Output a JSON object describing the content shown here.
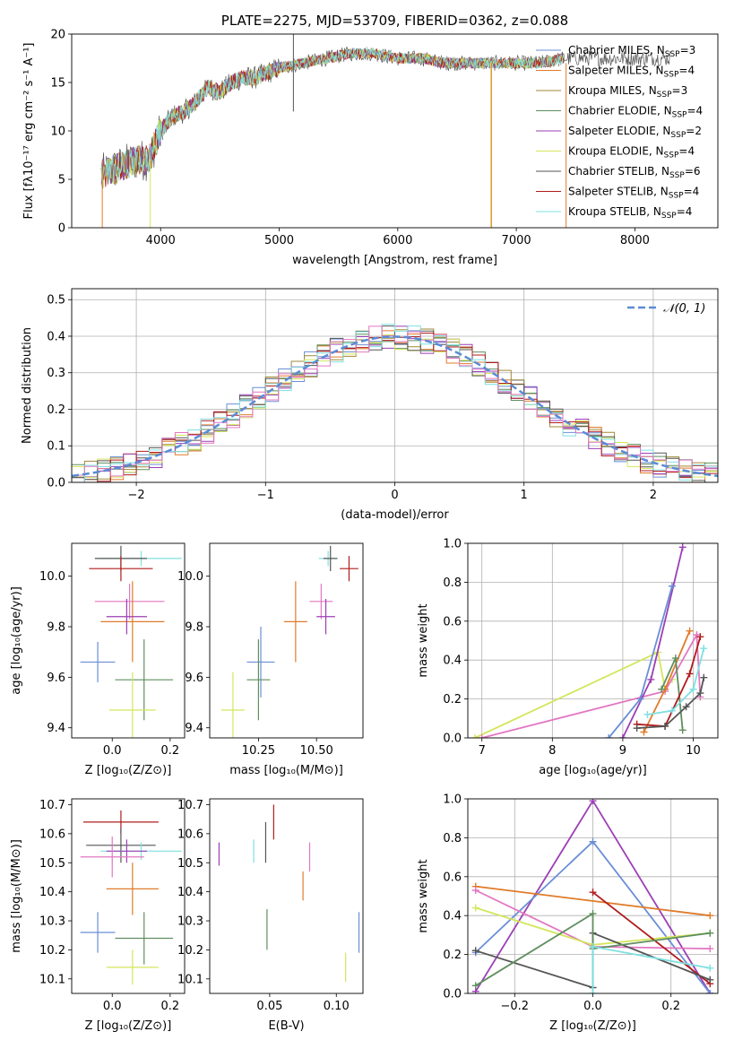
{
  "chart_data": [
    {
      "type": "line",
      "title": "PLATE=2275, MJD=53709, FIBERID=0362, z=0.088",
      "xlabel": "wavelength [Angstrom, rest frame]",
      "ylabel": "Flux [fλ10⁻¹⁷ erg cm⁻² s⁻¹ A⁻¹]",
      "xlim": [
        3250,
        8700
      ],
      "ylim": [
        0,
        20
      ],
      "xticks": [
        4000,
        5000,
        6000,
        7000,
        8000
      ],
      "yticks": [
        0,
        5,
        10,
        15,
        20
      ],
      "legend_position": "top-right",
      "data_x": [
        3500,
        3600,
        3700,
        3800,
        3900,
        4000,
        4100,
        4200,
        4300,
        4400,
        4500,
        4600,
        4700,
        4800,
        4900,
        5000,
        5200,
        5400,
        5600,
        5800,
        6000,
        6200,
        6400,
        6600,
        6800,
        7000,
        7200,
        7400
      ],
      "data_y": [
        5.5,
        6.0,
        6.5,
        7.0,
        7.0,
        10.0,
        11.5,
        12.0,
        13.0,
        14.5,
        14.0,
        15.0,
        15.5,
        15.5,
        16.0,
        16.5,
        17.0,
        17.5,
        18.0,
        18.0,
        17.5,
        17.5,
        17.0,
        17.0,
        17.0,
        17.0,
        17.0,
        17.5
      ],
      "series": [
        {
          "name": "Chabrier MILES",
          "nssp": "3",
          "color": "#6a8ed6"
        },
        {
          "name": "Salpeter MILES",
          "nssp": "4",
          "color": "#e07b2a"
        },
        {
          "name": "Kroupa MILES",
          "nssp": "3",
          "color": "#a08a38"
        },
        {
          "name": "Chabrier ELODIE",
          "nssp": "4",
          "color": "#5f8f5f"
        },
        {
          "name": "Salpeter ELODIE",
          "nssp": "2",
          "color": "#9b3fb5"
        },
        {
          "name": "Kroupa ELODIE",
          "nssp": "4",
          "color": "#d4e65c"
        },
        {
          "name": "Chabrier STELIB",
          "nssp": "6",
          "color": "#555555"
        },
        {
          "name": "Salpeter STELIB",
          "nssp": "4",
          "color": "#b01c1c"
        },
        {
          "name": "Kroupa STELIB",
          "nssp": "4",
          "color": "#7fe0e0"
        }
      ],
      "legend_suffix": "N",
      "legend_sub": "SSP",
      "legend_eq": "="
    },
    {
      "type": "line",
      "xlabel": "(data-model)/error",
      "ylabel": "Normed distribution",
      "xlim": [
        -2.5,
        2.5
      ],
      "ylim": [
        0,
        0.53
      ],
      "xticks": [
        -2,
        -1,
        0,
        1,
        2
      ],
      "xtick_labels": [
        "−2",
        "−1",
        "0",
        "1",
        "2"
      ],
      "yticks": [
        0,
        0.1,
        0.2,
        0.3,
        0.4,
        0.5
      ],
      "ytick_labels": [
        "0.0",
        "0.1",
        "0.2",
        "0.3",
        "0.4",
        "0.5"
      ],
      "legend_entry": "𝒩(0, 1)",
      "legend_position": "top-right",
      "grid": true
    },
    {
      "type": "scatter",
      "xlabel": "Z [log₁₀(Z/Z⊙)]",
      "ylabel": "age  [log₁₀(age/yr)]",
      "xlim": [
        -0.14,
        0.25
      ],
      "ylim": [
        9.36,
        10.13
      ],
      "xticks": [
        0.0,
        0.2
      ],
      "xtick_labels": [
        "0.0",
        "0.2"
      ],
      "yticks": [
        9.4,
        9.6,
        9.8,
        10.0
      ],
      "ytick_labels": [
        "9.4",
        "9.6",
        "9.8",
        "10.0"
      ],
      "points": [
        {
          "x": 0.1,
          "y": 10.07,
          "xerr": 0.14,
          "yerr": 0.03,
          "color": "#7fe0e0"
        },
        {
          "x": 0.03,
          "y": 10.07,
          "xerr": 0.09,
          "yerr": 0.05,
          "color": "#555555"
        },
        {
          "x": 0.03,
          "y": 10.03,
          "xerr": 0.11,
          "yerr": 0.05,
          "color": "#b01c1c"
        },
        {
          "x": 0.06,
          "y": 9.9,
          "xerr": 0.12,
          "yerr": 0.07,
          "color": "#e377c2"
        },
        {
          "x": 0.07,
          "y": 9.82,
          "xerr": 0.11,
          "yerr": 0.16,
          "color": "#e07b2a"
        },
        {
          "x": 0.05,
          "y": 9.84,
          "xerr": 0.07,
          "yerr": 0.07,
          "color": "#9b3fb5"
        },
        {
          "x": -0.05,
          "y": 9.66,
          "xerr": 0.06,
          "yerr": 0.08,
          "color": "#6a8ed6"
        },
        {
          "x": 0.11,
          "y": 9.59,
          "xerr": 0.1,
          "yerr": 0.16,
          "color": "#5f8f5f"
        },
        {
          "x": 0.07,
          "y": 9.47,
          "xerr": 0.08,
          "yerr": 0.15,
          "color": "#d4e65c"
        }
      ]
    },
    {
      "type": "scatter",
      "xlabel": "mass [log₁₀(M/M⊙)]",
      "xlim": [
        10.04,
        10.7
      ],
      "ylim": [
        9.36,
        10.13
      ],
      "xticks": [
        10.25,
        10.5
      ],
      "xtick_labels": [
        "10.25",
        "10.50"
      ],
      "yticks": [
        9.4,
        9.6,
        9.8,
        10.0
      ],
      "ytick_labels": [
        "9.4",
        "9.6",
        "9.8",
        "10.0"
      ],
      "points": [
        {
          "x": 10.55,
          "y": 10.07,
          "xerr": 0.04,
          "yerr": 0.03,
          "color": "#7fe0e0"
        },
        {
          "x": 10.56,
          "y": 10.07,
          "xerr": 0.03,
          "yerr": 0.05,
          "color": "#555555"
        },
        {
          "x": 10.64,
          "y": 10.03,
          "xerr": 0.04,
          "yerr": 0.05,
          "color": "#b01c1c"
        },
        {
          "x": 10.52,
          "y": 9.9,
          "xerr": 0.05,
          "yerr": 0.07,
          "color": "#e377c2"
        },
        {
          "x": 10.41,
          "y": 9.82,
          "xerr": 0.05,
          "yerr": 0.16,
          "color": "#e07b2a"
        },
        {
          "x": 10.54,
          "y": 9.84,
          "xerr": 0.04,
          "yerr": 0.07,
          "color": "#9b3fb5"
        },
        {
          "x": 10.26,
          "y": 9.66,
          "xerr": 0.06,
          "yerr": 0.14,
          "color": "#6a8ed6"
        },
        {
          "x": 10.25,
          "y": 9.59,
          "xerr": 0.05,
          "yerr": 0.16,
          "color": "#5f8f5f"
        },
        {
          "x": 10.14,
          "y": 9.47,
          "xerr": 0.05,
          "yerr": 0.15,
          "color": "#d4e65c"
        }
      ]
    },
    {
      "type": "line",
      "xlabel": "age  [log₁₀(age/yr)]",
      "ylabel": "mass weight",
      "xlim": [
        6.8,
        10.35
      ],
      "ylim": [
        0,
        1
      ],
      "xticks": [
        7,
        8,
        9,
        10
      ],
      "xtick_labels": [
        "7",
        "8",
        "9",
        "10"
      ],
      "yticks": [
        0,
        0.2,
        0.4,
        0.6,
        0.8,
        1.0
      ],
      "ytick_labels": [
        "0.0",
        "0.2",
        "0.4",
        "0.6",
        "0.8",
        "1.0"
      ],
      "grid": true,
      "series": [
        {
          "color": "#d4e65c",
          "points": [
            [
              6.9,
              0.0
            ],
            [
              9.5,
              0.44
            ],
            [
              9.6,
              0.25
            ],
            [
              9.7,
              0.3
            ]
          ]
        },
        {
          "color": "#e377c2",
          "points": [
            [
              7.0,
              0.0
            ],
            [
              9.6,
              0.24
            ],
            [
              10.05,
              0.53
            ],
            [
              10.1,
              0.21
            ]
          ]
        },
        {
          "color": "#9b3fb5",
          "points": [
            [
              9.0,
              0.0
            ],
            [
              9.4,
              0.3
            ],
            [
              9.85,
              0.98
            ]
          ]
        },
        {
          "color": "#6a8ed6",
          "points": [
            [
              8.8,
              0.0
            ],
            [
              9.25,
              0.2
            ],
            [
              9.7,
              0.78
            ]
          ]
        },
        {
          "color": "#e07b2a",
          "points": [
            [
              9.3,
              0.03
            ],
            [
              9.6,
              0.25
            ],
            [
              9.95,
              0.55
            ]
          ]
        },
        {
          "color": "#5f8f5f",
          "points": [
            [
              9.55,
              0.25
            ],
            [
              9.75,
              0.41
            ],
            [
              9.85,
              0.04
            ]
          ]
        },
        {
          "color": "#b01c1c",
          "points": [
            [
              9.2,
              0.07
            ],
            [
              9.6,
              0.06
            ],
            [
              9.95,
              0.33
            ],
            [
              10.1,
              0.52
            ]
          ]
        },
        {
          "color": "#555555",
          "points": [
            [
              9.2,
              0.05
            ],
            [
              9.6,
              0.06
            ],
            [
              9.9,
              0.16
            ],
            [
              10.1,
              0.23
            ],
            [
              10.15,
              0.31
            ]
          ]
        },
        {
          "color": "#7fe0e0",
          "points": [
            [
              9.35,
              0.12
            ],
            [
              9.7,
              0.14
            ],
            [
              10.0,
              0.25
            ],
            [
              10.15,
              0.46
            ]
          ]
        }
      ]
    },
    {
      "type": "scatter",
      "xlabel": "Z [log₁₀(Z/Z⊙)]",
      "ylabel": "mass [log₁₀(M/M⊙)]",
      "xlim": [
        -0.14,
        0.25
      ],
      "ylim": [
        10.05,
        10.72
      ],
      "xticks": [
        0.0,
        0.2
      ],
      "xtick_labels": [
        "0.0",
        "0.2"
      ],
      "yticks": [
        10.1,
        10.2,
        10.3,
        10.4,
        10.5,
        10.6,
        10.7
      ],
      "ytick_labels": [
        "10.1",
        "10.2",
        "10.3",
        "10.4",
        "10.5",
        "10.6",
        "10.7"
      ],
      "points": [
        {
          "x": 0.03,
          "y": 10.64,
          "xerr": 0.13,
          "yerr": 0.04,
          "color": "#b01c1c"
        },
        {
          "x": 0.03,
          "y": 10.56,
          "xerr": 0.12,
          "yerr": 0.06,
          "color": "#555555"
        },
        {
          "x": 0.1,
          "y": 10.54,
          "xerr": 0.14,
          "yerr": 0.03,
          "color": "#7fe0e0"
        },
        {
          "x": 0.05,
          "y": 10.54,
          "xerr": 0.07,
          "yerr": 0.04,
          "color": "#9b3fb5"
        },
        {
          "x": 0.0,
          "y": 10.52,
          "xerr": 0.11,
          "yerr": 0.07,
          "color": "#e377c2"
        },
        {
          "x": 0.07,
          "y": 10.41,
          "xerr": 0.09,
          "yerr": 0.09,
          "color": "#e07b2a"
        },
        {
          "x": -0.05,
          "y": 10.26,
          "xerr": 0.06,
          "yerr": 0.07,
          "color": "#6a8ed6"
        },
        {
          "x": 0.11,
          "y": 10.24,
          "xerr": 0.1,
          "yerr": 0.09,
          "color": "#5f8f5f"
        },
        {
          "x": 0.07,
          "y": 10.14,
          "xerr": 0.09,
          "yerr": 0.06,
          "color": "#d4e65c"
        }
      ]
    },
    {
      "type": "scatter",
      "xlabel": "E(B-V)",
      "xlim": [
        0.005,
        0.12
      ],
      "ylim": [
        10.05,
        10.72
      ],
      "xticks": [
        0.05,
        0.1
      ],
      "xtick_labels": [
        "0.05",
        "0.10"
      ],
      "yticks": [
        10.1,
        10.2,
        10.3,
        10.4,
        10.5,
        10.6,
        10.7
      ],
      "ytick_labels": [
        "10.1",
        "10.2",
        "10.3",
        "10.4",
        "10.5",
        "10.6",
        "10.7"
      ],
      "points": [
        {
          "x": 0.053,
          "y": 10.64,
          "yerr": 0.06,
          "color": "#b01c1c"
        },
        {
          "x": 0.047,
          "y": 10.57,
          "yerr": 0.07,
          "color": "#555555"
        },
        {
          "x": 0.038,
          "y": 10.54,
          "yerr": 0.04,
          "color": "#7fe0e0"
        },
        {
          "x": 0.012,
          "y": 10.53,
          "yerr": 0.04,
          "color": "#9b3fb5"
        },
        {
          "x": 0.08,
          "y": 10.52,
          "yerr": 0.05,
          "color": "#e377c2"
        },
        {
          "x": 0.075,
          "y": 10.42,
          "yerr": 0.05,
          "color": "#e07b2a"
        },
        {
          "x": 0.117,
          "y": 10.26,
          "yerr": 0.07,
          "color": "#6a8ed6"
        },
        {
          "x": 0.048,
          "y": 10.27,
          "yerr": 0.07,
          "color": "#5f8f5f"
        },
        {
          "x": 0.107,
          "y": 10.14,
          "yerr": 0.05,
          "color": "#d4e65c"
        }
      ]
    },
    {
      "type": "line",
      "xlabel": "Z [log₁₀(Z/Z⊙)]",
      "ylabel": "mass weight",
      "xlim": [
        -0.32,
        0.32
      ],
      "ylim": [
        0,
        1
      ],
      "xticks": [
        -0.2,
        0.0,
        0.2
      ],
      "xtick_labels": [
        "−0.2",
        "0.0",
        "0.2"
      ],
      "yticks": [
        0,
        0.2,
        0.4,
        0.6,
        0.8,
        1.0
      ],
      "ytick_labels": [
        "0.0",
        "0.2",
        "0.4",
        "0.6",
        "0.8",
        "1.0"
      ],
      "grid": true,
      "series": [
        {
          "color": "#9b3fb5",
          "points": [
            [
              -0.3,
              0.01
            ],
            [
              0.0,
              0.99
            ],
            [
              0.3,
              0.0
            ]
          ]
        },
        {
          "color": "#6a8ed6",
          "points": [
            [
              -0.3,
              0.21
            ],
            [
              0.0,
              0.78
            ],
            [
              0.3,
              0.0
            ]
          ]
        },
        {
          "color": "#e07b2a",
          "points": [
            [
              -0.3,
              0.55
            ],
            [
              0.3,
              0.4
            ]
          ]
        },
        {
          "color": "#e377c2",
          "points": [
            [
              -0.3,
              0.53
            ],
            [
              0.0,
              0.24
            ],
            [
              0.3,
              0.23
            ]
          ]
        },
        {
          "color": "#d4e65c",
          "points": [
            [
              -0.3,
              0.44
            ],
            [
              0.0,
              0.25
            ],
            [
              0.3,
              0.31
            ]
          ]
        },
        {
          "color": "#b01c1c",
          "points": [
            [
              0.0,
              0.52
            ],
            [
              0.3,
              0.05
            ]
          ]
        },
        {
          "color": "#555555",
          "points": [
            [
              -0.3,
              0.22
            ],
            [
              0.0,
              0.03
            ],
            [
              0.0,
              0.31
            ],
            [
              0.3,
              0.07
            ]
          ]
        },
        {
          "color": "#5f8f5f",
          "points": [
            [
              -0.3,
              0.04
            ],
            [
              0.0,
              0.41
            ],
            [
              0.0,
              0.23
            ],
            [
              0.3,
              0.31
            ]
          ]
        },
        {
          "color": "#7fe0e0",
          "points": [
            [
              0.0,
              0.0
            ],
            [
              0.0,
              0.24
            ],
            [
              0.3,
              0.13
            ]
          ]
        }
      ]
    }
  ]
}
